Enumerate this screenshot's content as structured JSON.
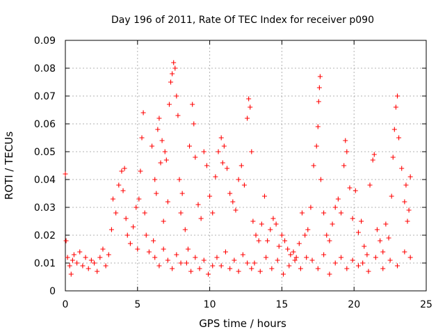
{
  "chart_data": {
    "type": "scatter",
    "title": "Day 196 of 2011, Rate Of TEC Index for receiver p090",
    "xlabel": "GPS time / hours",
    "ylabel": "ROTI / TECUs",
    "xlim": [
      0,
      25
    ],
    "ylim": [
      0,
      0.09
    ],
    "x_ticks": [
      "0",
      "5",
      "10",
      "15",
      "20",
      "25"
    ],
    "y_ticks": [
      "0",
      "0.01",
      "0.02",
      "0.03",
      "0.04",
      "0.05",
      "0.06",
      "0.07",
      "0.08",
      "0.09"
    ],
    "grid": true,
    "marker": "+",
    "marker_color": "#ff0000",
    "series": [
      {
        "points": [
          [
            0.0,
            0.042
          ],
          [
            0.05,
            0.018
          ],
          [
            0.15,
            0.012
          ],
          [
            0.3,
            0.009
          ],
          [
            0.4,
            0.006
          ],
          [
            0.5,
            0.011
          ],
          [
            0.6,
            0.013
          ],
          [
            0.8,
            0.01
          ],
          [
            1.0,
            0.014
          ],
          [
            1.2,
            0.009
          ],
          [
            1.4,
            0.012
          ],
          [
            1.6,
            0.008
          ],
          [
            1.8,
            0.011
          ],
          [
            2.0,
            0.01
          ],
          [
            2.2,
            0.007
          ],
          [
            2.4,
            0.012
          ],
          [
            2.6,
            0.015
          ],
          [
            2.8,
            0.009
          ],
          [
            3.0,
            0.013
          ],
          [
            3.2,
            0.022
          ],
          [
            3.3,
            0.033
          ],
          [
            3.5,
            0.028
          ],
          [
            3.7,
            0.038
          ],
          [
            3.9,
            0.043
          ],
          [
            4.0,
            0.036
          ],
          [
            4.1,
            0.044
          ],
          [
            4.2,
            0.026
          ],
          [
            4.3,
            0.02
          ],
          [
            4.5,
            0.017
          ],
          [
            4.7,
            0.023
          ],
          [
            4.9,
            0.03
          ],
          [
            5.0,
            0.015
          ],
          [
            5.1,
            0.033
          ],
          [
            5.2,
            0.043
          ],
          [
            5.3,
            0.055
          ],
          [
            5.4,
            0.064
          ],
          [
            5.5,
            0.028
          ],
          [
            5.6,
            0.02
          ],
          [
            5.8,
            0.014
          ],
          [
            6.0,
            0.052
          ],
          [
            6.1,
            0.018
          ],
          [
            6.2,
            0.04
          ],
          [
            6.3,
            0.035
          ],
          [
            6.4,
            0.058
          ],
          [
            6.5,
            0.062
          ],
          [
            6.6,
            0.046
          ],
          [
            6.7,
            0.054
          ],
          [
            6.8,
            0.025
          ],
          [
            6.9,
            0.05
          ],
          [
            7.0,
            0.047
          ],
          [
            7.1,
            0.032
          ],
          [
            7.2,
            0.067
          ],
          [
            7.3,
            0.075
          ],
          [
            7.4,
            0.078
          ],
          [
            7.5,
            0.082
          ],
          [
            7.6,
            0.08
          ],
          [
            7.7,
            0.07
          ],
          [
            7.8,
            0.063
          ],
          [
            7.9,
            0.04
          ],
          [
            8.0,
            0.028
          ],
          [
            6.2,
            0.012
          ],
          [
            6.5,
            0.009
          ],
          [
            6.8,
            0.015
          ],
          [
            7.1,
            0.011
          ],
          [
            7.4,
            0.008
          ],
          [
            7.7,
            0.013
          ],
          [
            8.0,
            0.01
          ],
          [
            8.1,
            0.035
          ],
          [
            8.3,
            0.022
          ],
          [
            8.5,
            0.015
          ],
          [
            8.6,
            0.052
          ],
          [
            8.8,
            0.067
          ],
          [
            8.9,
            0.06
          ],
          [
            9.0,
            0.048
          ],
          [
            9.2,
            0.031
          ],
          [
            9.4,
            0.026
          ],
          [
            9.6,
            0.05
          ],
          [
            9.8,
            0.045
          ],
          [
            10.0,
            0.034
          ],
          [
            8.4,
            0.01
          ],
          [
            8.7,
            0.007
          ],
          [
            9.0,
            0.012
          ],
          [
            9.3,
            0.008
          ],
          [
            9.6,
            0.011
          ],
          [
            9.9,
            0.006
          ],
          [
            10.2,
            0.009
          ],
          [
            10.2,
            0.028
          ],
          [
            10.4,
            0.041
          ],
          [
            10.6,
            0.05
          ],
          [
            10.8,
            0.055
          ],
          [
            10.9,
            0.046
          ],
          [
            11.0,
            0.052
          ],
          [
            11.2,
            0.044
          ],
          [
            11.4,
            0.035
          ],
          [
            11.6,
            0.032
          ],
          [
            11.8,
            0.029
          ],
          [
            12.0,
            0.04
          ],
          [
            12.2,
            0.045
          ],
          [
            12.4,
            0.038
          ],
          [
            12.6,
            0.062
          ],
          [
            12.7,
            0.069
          ],
          [
            12.8,
            0.066
          ],
          [
            12.9,
            0.05
          ],
          [
            10.5,
            0.012
          ],
          [
            10.8,
            0.009
          ],
          [
            11.1,
            0.014
          ],
          [
            11.4,
            0.008
          ],
          [
            11.7,
            0.011
          ],
          [
            12.0,
            0.007
          ],
          [
            12.3,
            0.013
          ],
          [
            12.6,
            0.01
          ],
          [
            12.9,
            0.008
          ],
          [
            13.0,
            0.025
          ],
          [
            13.2,
            0.02
          ],
          [
            13.4,
            0.018
          ],
          [
            13.6,
            0.024
          ],
          [
            13.8,
            0.034
          ],
          [
            14.0,
            0.018
          ],
          [
            14.2,
            0.022
          ],
          [
            14.4,
            0.026
          ],
          [
            14.6,
            0.024
          ],
          [
            14.8,
            0.016
          ],
          [
            15.0,
            0.02
          ],
          [
            15.2,
            0.018
          ],
          [
            15.4,
            0.015
          ],
          [
            15.6,
            0.013
          ],
          [
            15.8,
            0.014
          ],
          [
            16.0,
            0.012
          ],
          [
            16.2,
            0.017
          ],
          [
            16.4,
            0.028
          ],
          [
            16.6,
            0.02
          ],
          [
            16.8,
            0.022
          ],
          [
            13.1,
            0.01
          ],
          [
            13.5,
            0.007
          ],
          [
            13.9,
            0.012
          ],
          [
            14.3,
            0.008
          ],
          [
            14.7,
            0.011
          ],
          [
            15.1,
            0.006
          ],
          [
            15.5,
            0.009
          ],
          [
            15.9,
            0.011
          ],
          [
            16.3,
            0.008
          ],
          [
            16.7,
            0.012
          ],
          [
            17.0,
            0.03
          ],
          [
            17.2,
            0.045
          ],
          [
            17.4,
            0.052
          ],
          [
            17.5,
            0.059
          ],
          [
            17.55,
            0.068
          ],
          [
            17.6,
            0.073
          ],
          [
            17.65,
            0.077
          ],
          [
            17.7,
            0.04
          ],
          [
            17.9,
            0.028
          ],
          [
            18.1,
            0.02
          ],
          [
            18.3,
            0.018
          ],
          [
            18.5,
            0.024
          ],
          [
            18.7,
            0.03
          ],
          [
            18.9,
            0.033
          ],
          [
            19.1,
            0.028
          ],
          [
            19.3,
            0.045
          ],
          [
            19.4,
            0.054
          ],
          [
            19.5,
            0.05
          ],
          [
            19.7,
            0.037
          ],
          [
            19.9,
            0.026
          ],
          [
            20.1,
            0.036
          ],
          [
            20.3,
            0.021
          ],
          [
            17.1,
            0.011
          ],
          [
            17.5,
            0.008
          ],
          [
            17.9,
            0.013
          ],
          [
            18.3,
            0.006
          ],
          [
            18.7,
            0.01
          ],
          [
            19.1,
            0.012
          ],
          [
            19.5,
            0.008
          ],
          [
            19.9,
            0.011
          ],
          [
            20.3,
            0.009
          ],
          [
            20.5,
            0.025
          ],
          [
            20.7,
            0.016
          ],
          [
            20.9,
            0.013
          ],
          [
            21.1,
            0.038
          ],
          [
            21.3,
            0.047
          ],
          [
            21.4,
            0.049
          ],
          [
            21.6,
            0.022
          ],
          [
            21.8,
            0.018
          ],
          [
            22.0,
            0.014
          ],
          [
            22.2,
            0.024
          ],
          [
            22.4,
            0.019
          ],
          [
            22.6,
            0.034
          ],
          [
            22.7,
            0.048
          ],
          [
            22.8,
            0.058
          ],
          [
            22.9,
            0.066
          ],
          [
            23.0,
            0.07
          ],
          [
            23.1,
            0.055
          ],
          [
            23.3,
            0.044
          ],
          [
            23.5,
            0.032
          ],
          [
            23.6,
            0.038
          ],
          [
            23.7,
            0.025
          ],
          [
            23.8,
            0.029
          ],
          [
            23.9,
            0.041
          ],
          [
            20.6,
            0.01
          ],
          [
            21.0,
            0.007
          ],
          [
            21.5,
            0.012
          ],
          [
            22.0,
            0.008
          ],
          [
            22.5,
            0.011
          ],
          [
            23.0,
            0.009
          ],
          [
            23.5,
            0.014
          ],
          [
            23.9,
            0.012
          ]
        ]
      }
    ]
  }
}
